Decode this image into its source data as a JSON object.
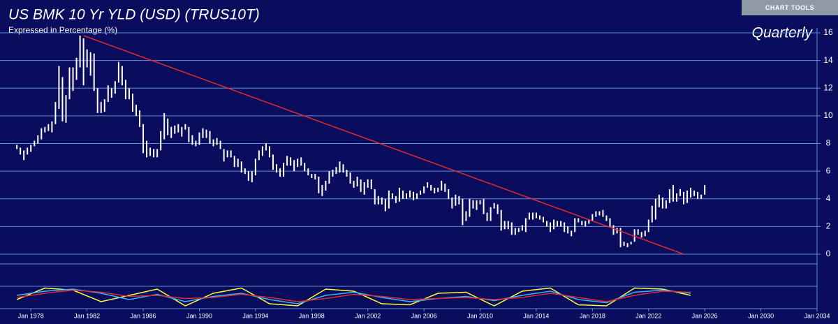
{
  "header": {
    "title": "US BMK 10 Yr YLD (USD) (TRUS10T)",
    "subtitle": "Expressed in Percentage (%)",
    "button": "CHART TOOLS"
  },
  "chart_data": {
    "type": "ohlc",
    "annotation": "Quarterly",
    "color": "#ffffff",
    "grid": true,
    "xlim": [
      1975.8,
      2034
    ],
    "ylim": [
      0,
      16
    ],
    "yticks": [
      0,
      2,
      4,
      6,
      8,
      10,
      12,
      14,
      16
    ],
    "xticks": [
      {
        "value": 1978,
        "label": "Jan 1978"
      },
      {
        "value": 1982,
        "label": "Jan 1982"
      },
      {
        "value": 1986,
        "label": "Jan 1986"
      },
      {
        "value": 1990,
        "label": "Jan 1990"
      },
      {
        "value": 1994,
        "label": "Jan 1994"
      },
      {
        "value": 1998,
        "label": "Jan 1998"
      },
      {
        "value": 2002,
        "label": "Jan 2002"
      },
      {
        "value": 2006,
        "label": "Jan 2006"
      },
      {
        "value": 2010,
        "label": "Jan 2010"
      },
      {
        "value": 2014,
        "label": "Jan 2014"
      },
      {
        "value": 2018,
        "label": "Jan 2018"
      },
      {
        "value": 2022,
        "label": "Jan 2022"
      },
      {
        "value": 2026,
        "label": "Jan 2026"
      },
      {
        "value": 2030,
        "label": "Jan 2030"
      },
      {
        "value": 2034,
        "label": "Jan 2034"
      }
    ],
    "x": [
      1977,
      1977.25,
      1977.5,
      1977.75,
      1978,
      1978.25,
      1978.5,
      1978.75,
      1979,
      1979.25,
      1979.5,
      1979.75,
      1980,
      1980.25,
      1980.5,
      1980.75,
      1981,
      1981.25,
      1981.5,
      1981.75,
      1982,
      1982.25,
      1982.5,
      1982.75,
      1983,
      1983.25,
      1983.5,
      1983.75,
      1984,
      1984.25,
      1984.5,
      1984.75,
      1985,
      1985.25,
      1985.5,
      1985.75,
      1986,
      1986.25,
      1986.5,
      1986.75,
      1987,
      1987.25,
      1987.5,
      1987.75,
      1988,
      1988.25,
      1988.5,
      1988.75,
      1989,
      1989.25,
      1989.5,
      1989.75,
      1990,
      1990.25,
      1990.5,
      1990.75,
      1991,
      1991.25,
      1991.5,
      1991.75,
      1992,
      1992.25,
      1992.5,
      1992.75,
      1993,
      1993.25,
      1993.5,
      1993.75,
      1994,
      1994.25,
      1994.5,
      1994.75,
      1995,
      1995.25,
      1995.5,
      1995.75,
      1996,
      1996.25,
      1996.5,
      1996.75,
      1997,
      1997.25,
      1997.5,
      1997.75,
      1998,
      1998.25,
      1998.5,
      1998.75,
      1999,
      1999.25,
      1999.5,
      1999.75,
      2000,
      2000.25,
      2000.5,
      2000.75,
      2001,
      2001.25,
      2001.5,
      2001.75,
      2002,
      2002.25,
      2002.5,
      2002.75,
      2003,
      2003.25,
      2003.5,
      2003.75,
      2004,
      2004.25,
      2004.5,
      2004.75,
      2005,
      2005.25,
      2005.5,
      2005.75,
      2006,
      2006.25,
      2006.5,
      2006.75,
      2007,
      2007.25,
      2007.5,
      2007.75,
      2008,
      2008.25,
      2008.5,
      2008.75,
      2009,
      2009.25,
      2009.5,
      2009.75,
      2010,
      2010.25,
      2010.5,
      2010.75,
      2011,
      2011.25,
      2011.5,
      2011.75,
      2012,
      2012.25,
      2012.5,
      2012.75,
      2013,
      2013.25,
      2013.5,
      2013.75,
      2014,
      2014.25,
      2014.5,
      2014.75,
      2015,
      2015.25,
      2015.5,
      2015.75,
      2016,
      2016.25,
      2016.5,
      2016.75,
      2017,
      2017.25,
      2017.5,
      2017.75,
      2018,
      2018.25,
      2018.5,
      2018.75,
      2019,
      2019.25,
      2019.5,
      2019.75,
      2020,
      2020.25,
      2020.5,
      2020.75,
      2021,
      2021.25,
      2021.5,
      2021.75,
      2022,
      2022.25,
      2022.5,
      2022.75,
      2023,
      2023.25,
      2023.5,
      2023.75,
      2024,
      2024.25,
      2024.5,
      2024.75,
      2025,
      2025.25,
      2025.5,
      2025.75,
      2026
    ],
    "high": [
      7.9,
      7.7,
      7.5,
      7.7,
      7.9,
      8.2,
      8.6,
      9.1,
      9.2,
      9.4,
      9.6,
      11.0,
      13.6,
      12.8,
      11.5,
      13.5,
      13.5,
      14.2,
      15.8,
      15.6,
      14.8,
      14.6,
      14.5,
      12.0,
      11.0,
      11.2,
      12.2,
      12.0,
      12.5,
      13.9,
      13.6,
      12.6,
      12.0,
      11.6,
      10.8,
      10.4,
      9.4,
      8.2,
      7.7,
      7.6,
      7.6,
      8.9,
      10.2,
      9.8,
      9.2,
      9.3,
      9.4,
      9.2,
      9.4,
      9.2,
      8.6,
      8.2,
      8.8,
      9.1,
      9.0,
      8.9,
      8.3,
      8.4,
      8.2,
      7.6,
      7.5,
      7.5,
      7.1,
      6.9,
      6.7,
      6.2,
      6.0,
      6.0,
      6.9,
      7.5,
      7.8,
      8.0,
      7.8,
      7.2,
      6.5,
      6.2,
      6.6,
      7.1,
      7.0,
      6.8,
      6.9,
      7.0,
      6.6,
      6.2,
      5.8,
      5.8,
      5.6,
      5.0,
      5.3,
      6.0,
      6.1,
      6.3,
      6.7,
      6.5,
      6.1,
      5.9,
      5.3,
      5.6,
      5.4,
      5.2,
      5.4,
      5.4,
      4.7,
      4.2,
      4.1,
      4.0,
      4.6,
      4.4,
      4.2,
      4.8,
      4.6,
      4.4,
      4.6,
      4.5,
      4.4,
      4.6,
      4.9,
      5.2,
      5.0,
      4.8,
      4.8,
      5.3,
      5.1,
      4.7,
      4.1,
      4.3,
      4.2,
      4.0,
      3.1,
      4.0,
      3.9,
      3.9,
      3.9,
      4.0,
      3.0,
      3.4,
      3.7,
      3.6,
      3.2,
      2.4,
      2.4,
      2.3,
      1.9,
      1.9,
      2.1,
      2.6,
      3.0,
      3.0,
      3.0,
      2.8,
      2.7,
      2.4,
      2.3,
      2.5,
      2.4,
      2.4,
      2.3,
      2.0,
      1.7,
      2.6,
      2.6,
      2.4,
      2.4,
      2.5,
      2.9,
      3.1,
      3.1,
      3.2,
      2.8,
      2.6,
      2.1,
      1.9,
      1.9,
      0.9,
      0.8,
      0.9,
      1.8,
      1.8,
      1.6,
      1.7,
      2.5,
      3.5,
      4.0,
      4.3,
      4.1,
      3.9,
      4.7,
      5.0,
      4.4,
      4.7,
      4.5,
      4.6,
      4.8,
      4.6,
      4.5,
      4.3,
      5.0
    ],
    "low": [
      7.6,
      7.2,
      6.8,
      7.2,
      7.4,
      7.8,
      8.0,
      8.3,
      8.8,
      8.9,
      8.8,
      9.4,
      10.5,
      9.6,
      9.5,
      11.2,
      11.8,
      12.6,
      13.5,
      12.2,
      13.5,
      12.9,
      11.8,
      10.2,
      10.2,
      10.3,
      11.0,
      11.3,
      11.6,
      12.4,
      12.2,
      11.2,
      11.2,
      10.3,
      10.0,
      9.2,
      7.3,
      7.0,
      7.1,
      7.0,
      7.0,
      7.5,
      8.3,
      8.6,
      8.4,
      8.7,
      8.8,
      8.5,
      9.0,
      8.1,
      7.9,
      7.8,
      7.9,
      8.4,
      8.4,
      8.0,
      7.8,
      7.9,
      7.6,
      6.7,
      7.0,
      7.0,
      6.3,
      6.3,
      5.9,
      5.8,
      5.3,
      5.2,
      5.7,
      6.8,
      7.1,
      7.5,
      7.0,
      6.1,
      5.9,
      5.6,
      5.6,
      6.4,
      6.4,
      6.0,
      6.3,
      6.4,
      6.0,
      5.7,
      5.5,
      5.4,
      4.4,
      4.2,
      4.6,
      5.1,
      5.6,
      5.8,
      5.9,
      5.9,
      5.6,
      5.1,
      4.8,
      4.9,
      4.5,
      4.3,
      4.8,
      4.7,
      3.6,
      3.6,
      3.6,
      3.1,
      3.3,
      4.0,
      3.7,
      3.8,
      4.0,
      4.0,
      4.1,
      3.9,
      4.0,
      4.3,
      4.4,
      4.8,
      4.6,
      4.4,
      4.5,
      4.6,
      4.5,
      4.0,
      3.3,
      3.5,
      3.6,
      2.1,
      2.4,
      2.7,
      3.3,
      3.2,
      3.6,
      2.9,
      2.4,
      2.4,
      3.3,
      2.9,
      1.7,
      1.8,
      1.8,
      1.4,
      1.4,
      1.6,
      1.7,
      1.6,
      2.5,
      2.5,
      2.6,
      2.5,
      2.3,
      2.0,
      1.6,
      1.8,
      2.0,
      2.0,
      1.6,
      1.5,
      1.3,
      1.6,
      2.3,
      2.1,
      2.0,
      2.2,
      2.4,
      2.7,
      2.8,
      2.7,
      2.4,
      2.0,
      1.4,
      1.5,
      0.5,
      0.6,
      0.5,
      0.7,
      0.9,
      1.4,
      1.2,
      1.3,
      1.6,
      2.3,
      2.5,
      3.4,
      3.3,
      3.3,
      3.7,
      3.8,
      3.8,
      4.2,
      3.6,
      3.7,
      4.1,
      4.2,
      4.0,
      4.0,
      4.3
    ],
    "trendline": {
      "color": "#e02a2a",
      "x": [
        1981.75,
        2024.5
      ],
      "values": [
        15.8,
        0
      ]
    },
    "lower_panel": {
      "ylim": [
        0,
        100
      ],
      "x": [
        1977,
        1979,
        1981,
        1983,
        1985,
        1987,
        1989,
        1991,
        1993,
        1995,
        1997,
        1999,
        2001,
        2003,
        2005,
        2007,
        2009,
        2011,
        2013,
        2015,
        2017,
        2019,
        2021,
        2023,
        2025
      ],
      "series": [
        {
          "color": "#ffff33",
          "values": [
            40,
            95,
            85,
            30,
            60,
            90,
            10,
            70,
            95,
            20,
            10,
            90,
            80,
            20,
            15,
            70,
            75,
            10,
            80,
            95,
            15,
            10,
            95,
            90,
            60
          ]
        },
        {
          "color": "#33b5ff",
          "values": [
            60,
            80,
            90,
            70,
            40,
            65,
            30,
            55,
            70,
            40,
            20,
            60,
            75,
            50,
            30,
            45,
            55,
            35,
            60,
            80,
            40,
            25,
            75,
            85,
            70
          ]
        },
        {
          "color": "#e02a2a",
          "values": [
            50,
            70,
            85,
            75,
            55,
            60,
            45,
            50,
            65,
            50,
            30,
            45,
            65,
            55,
            40,
            45,
            50,
            40,
            50,
            70,
            50,
            30,
            60,
            80,
            75
          ]
        }
      ]
    }
  }
}
